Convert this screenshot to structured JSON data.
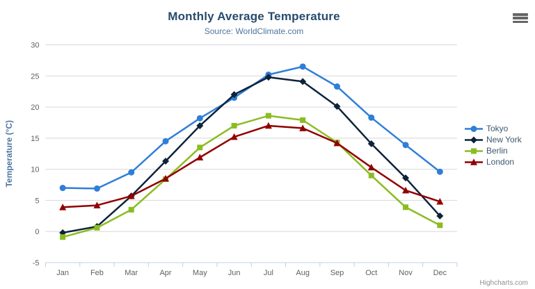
{
  "header": {
    "title": "Monthly Average Temperature",
    "subtitle": "Source: WorldClimate.com"
  },
  "chart_data": {
    "type": "line",
    "title": "Monthly Average Temperature",
    "subtitle": "Source: WorldClimate.com",
    "categories": [
      "Jan",
      "Feb",
      "Mar",
      "Apr",
      "May",
      "Jun",
      "Jul",
      "Aug",
      "Sep",
      "Oct",
      "Nov",
      "Dec"
    ],
    "xlabel": "",
    "ylabel": "Temperature (°C)",
    "ylim": [
      -5,
      30
    ],
    "ytick_interval": 5,
    "grid": true,
    "legend_position": "right",
    "series": [
      {
        "name": "Tokyo",
        "color": "#2f7ed8",
        "marker": "circle",
        "values": [
          7.0,
          6.9,
          9.5,
          14.5,
          18.2,
          21.5,
          25.2,
          26.5,
          23.3,
          18.3,
          13.9,
          9.6
        ]
      },
      {
        "name": "New York",
        "color": "#0d233a",
        "marker": "diamond",
        "values": [
          -0.2,
          0.8,
          5.7,
          11.3,
          17.0,
          22.0,
          24.8,
          24.1,
          20.1,
          14.1,
          8.6,
          2.5
        ]
      },
      {
        "name": "Berlin",
        "color": "#8bbc21",
        "marker": "square",
        "values": [
          -0.9,
          0.6,
          3.5,
          8.4,
          13.5,
          17.0,
          18.6,
          17.9,
          14.3,
          9.0,
          3.9,
          1.0
        ]
      },
      {
        "name": "London",
        "color": "#910000",
        "marker": "triangle",
        "values": [
          3.9,
          4.2,
          5.7,
          8.5,
          11.9,
          15.2,
          17.0,
          16.6,
          14.2,
          10.3,
          6.6,
          4.8
        ]
      }
    ]
  },
  "export_menu": {
    "icon": "hamburger-menu-icon"
  },
  "credits": {
    "text": "Highcharts.com"
  },
  "colors": {
    "grid": "#d8d8d8",
    "axis_line": "#c0d0e0",
    "tick": "#c0d0e0",
    "axis_label": "#606060",
    "axis_title": "#4d759e",
    "title": "#274b6d",
    "subtitle": "#4d759e",
    "legend_text": "#3e576f",
    "credits": "#909090"
  }
}
